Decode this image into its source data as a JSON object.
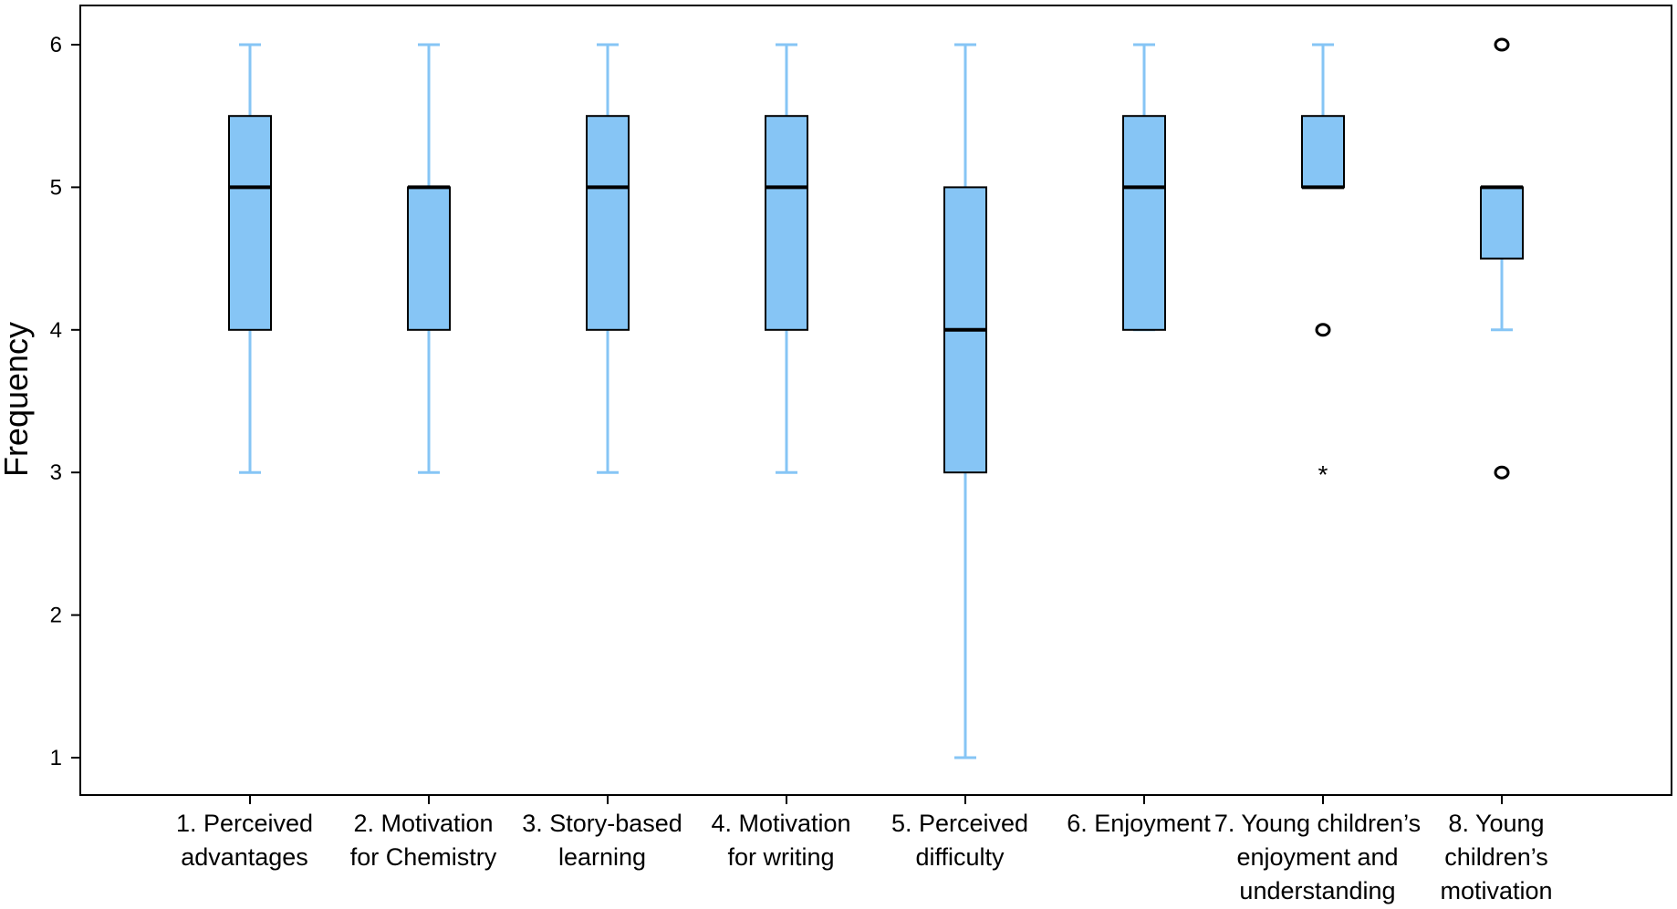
{
  "chart_data": {
    "type": "boxplot",
    "title": "",
    "xlabel": "",
    "ylabel": "Frequency",
    "ylim": [
      0.5,
      6.3
    ],
    "yticks": [
      1,
      2,
      3,
      4,
      5,
      6
    ],
    "colors": {
      "box_fill": "#86c5f5",
      "whisker": "#86c5f5",
      "median": "#000000",
      "axis": "#000000"
    },
    "categories": [
      {
        "lines": [
          "1. Perceived",
          "advantages"
        ],
        "min": 3,
        "q1": 4,
        "median": 5,
        "q3": 5.5,
        "max": 6,
        "outliers": []
      },
      {
        "lines": [
          "2. Motivation",
          "for Chemistry"
        ],
        "min": 3,
        "q1": 4,
        "median": 5,
        "q3": 5,
        "max": 6,
        "outliers": []
      },
      {
        "lines": [
          "3. Story-based",
          "learning"
        ],
        "min": 3,
        "q1": 4,
        "median": 5,
        "q3": 5.5,
        "max": 6,
        "outliers": []
      },
      {
        "lines": [
          "4. Motivation",
          "for writing"
        ],
        "min": 3,
        "q1": 4,
        "median": 5,
        "q3": 5.5,
        "max": 6,
        "outliers": []
      },
      {
        "lines": [
          "5. Perceived",
          "difficulty"
        ],
        "min": 1,
        "q1": 3,
        "median": 4,
        "q3": 5,
        "max": 6,
        "outliers": []
      },
      {
        "lines": [
          "6. Enjoyment"
        ],
        "min": 4,
        "q1": 4,
        "median": 5,
        "q3": 5.5,
        "max": 6,
        "outliers": []
      },
      {
        "lines": [
          "7. Young children’s",
          "enjoyment and",
          "understanding"
        ],
        "min": 5,
        "q1": 5,
        "median": 5,
        "q3": 5.5,
        "max": 6,
        "outliers": [
          {
            "value": 4,
            "marker": "circle"
          },
          {
            "value": 3,
            "marker": "star"
          }
        ]
      },
      {
        "lines": [
          "8. Young",
          "children’s",
          "motivation"
        ],
        "min": 4,
        "q1": 4.5,
        "median": 5,
        "q3": 5,
        "max": 5,
        "outliers": [
          {
            "value": 6,
            "marker": "circle"
          },
          {
            "value": 3,
            "marker": "circle"
          }
        ]
      }
    ]
  }
}
